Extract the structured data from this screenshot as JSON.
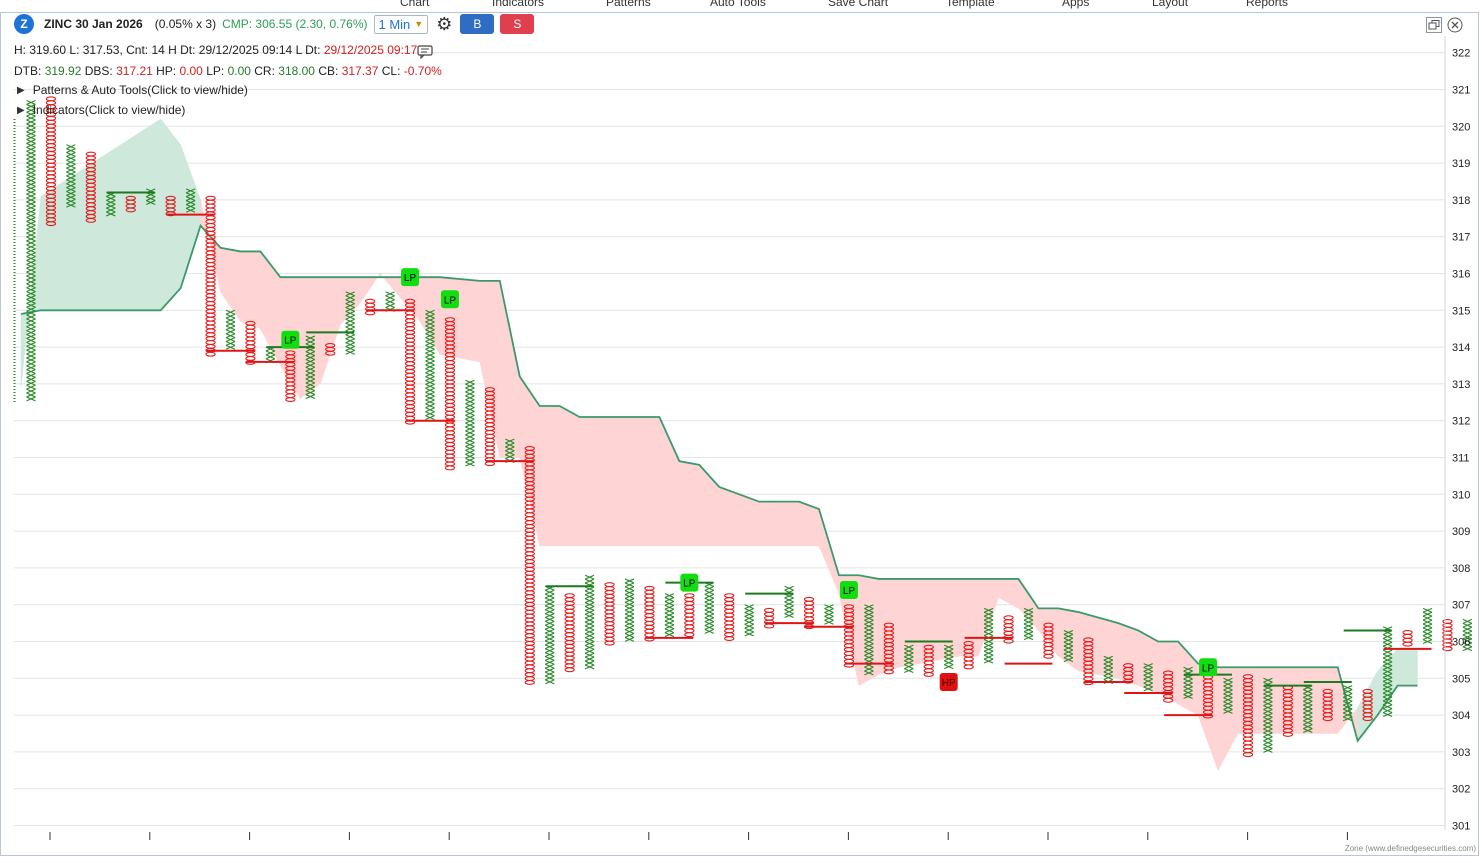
{
  "top_menu": [
    "Chart",
    "Indicators",
    "Patterns",
    "Auto Tools",
    "Save Chart",
    "Template",
    "Apps",
    "Layout",
    "Reports"
  ],
  "header": {
    "logo_letter": "Z",
    "symbol": "ZINC 30 Jan 2026",
    "params": "(0.05% x 3)",
    "cmp": "CMP: 306.55 (2.30, 0.76%)",
    "timeframe": "1 Min",
    "buy_label": "B",
    "sell_label": "S"
  },
  "stats_line1": {
    "h": "H: 319.60",
    "l": "L: 317.53",
    "cnt": ", Cnt: 14",
    "h_dt": "H Dt: 29/12/2025 09:14",
    "l_dt_label": "L Dt:",
    "l_dt_value": "29/12/2025 09:17"
  },
  "stats_line2": {
    "dtb_label": "DTB:",
    "dtb": "319.92",
    "dbs_label": "DBS:",
    "dbs": "317.21",
    "hp_label": "HP:",
    "hp": "0.00",
    "lp_label": "LP:",
    "lp": "0.00",
    "cr_label": "CR:",
    "cr": "318.00",
    "cb_label": "CB:",
    "cb": "317.37",
    "cl_label": "CL:",
    "cl": "-0.70%"
  },
  "toggles": {
    "patterns": "Patterns & Auto Tools(Click to view/hide)",
    "indicators": "Indicators(Click to view/hide)"
  },
  "watermark": "Zone (www.definedgesecurities.com)",
  "colors": {
    "x": "#2a8a2a",
    "o": "#e02020",
    "band_up": "#cfe8dc",
    "band_down": "#ffd4d4",
    "line": "#3a9a6a",
    "lp": "#11dd11",
    "hp": "#e01010"
  },
  "chart_data": {
    "type": "point-and-figure",
    "y_range": [
      301,
      322.5
    ],
    "y_ticks": [
      301,
      302,
      303,
      304,
      305,
      306,
      307,
      308,
      309,
      310,
      311,
      312,
      313,
      314,
      315,
      316,
      317,
      318,
      319,
      320,
      321,
      322
    ],
    "grid": true,
    "columns": [
      {
        "t": "X",
        "lo": 312.5,
        "hi": 320.7
      },
      {
        "t": "O",
        "lo": 317.3,
        "hi": 320.8
      },
      {
        "t": "X",
        "lo": 317.8,
        "hi": 319.5
      },
      {
        "t": "O",
        "lo": 317.4,
        "hi": 319.3
      },
      {
        "t": "X",
        "lo": 317.6,
        "hi": 318.2
      },
      {
        "t": "O",
        "lo": 317.7,
        "hi": 318.1
      },
      {
        "t": "X",
        "lo": 317.9,
        "hi": 318.3
      },
      {
        "t": "O",
        "lo": 317.6,
        "hi": 318.1
      },
      {
        "t": "X",
        "lo": 317.7,
        "hi": 318.3
      },
      {
        "t": "O",
        "lo": 313.8,
        "hi": 318.1
      },
      {
        "t": "X",
        "lo": 313.9,
        "hi": 315.0
      },
      {
        "t": "O",
        "lo": 313.5,
        "hi": 314.7
      },
      {
        "t": "X",
        "lo": 313.6,
        "hi": 314.0
      },
      {
        "t": "O",
        "lo": 312.5,
        "hi": 313.9
      },
      {
        "t": "X",
        "lo": 312.6,
        "hi": 314.3
      },
      {
        "t": "O",
        "lo": 313.8,
        "hi": 314.1
      },
      {
        "t": "X",
        "lo": 313.8,
        "hi": 315.5
      },
      {
        "t": "O",
        "lo": 314.9,
        "hi": 315.3
      },
      {
        "t": "X",
        "lo": 315.0,
        "hi": 315.5
      },
      {
        "t": "O",
        "lo": 311.9,
        "hi": 315.3
      },
      {
        "t": "X",
        "lo": 312.0,
        "hi": 315.0
      },
      {
        "t": "O",
        "lo": 310.7,
        "hi": 314.8
      },
      {
        "t": "X",
        "lo": 310.8,
        "hi": 313.1
      },
      {
        "t": "O",
        "lo": 310.8,
        "hi": 312.9
      },
      {
        "t": "X",
        "lo": 310.9,
        "hi": 311.5
      },
      {
        "t": "O",
        "lo": 304.8,
        "hi": 311.3
      },
      {
        "t": "X",
        "lo": 304.9,
        "hi": 307.5
      },
      {
        "t": "O",
        "lo": 305.2,
        "hi": 307.3
      },
      {
        "t": "X",
        "lo": 305.3,
        "hi": 307.8
      },
      {
        "t": "O",
        "lo": 305.9,
        "hi": 307.6
      },
      {
        "t": "X",
        "lo": 306.0,
        "hi": 307.7
      },
      {
        "t": "O",
        "lo": 306.0,
        "hi": 307.5
      },
      {
        "t": "X",
        "lo": 306.1,
        "hi": 307.3
      },
      {
        "t": "O",
        "lo": 306.1,
        "hi": 307.3
      },
      {
        "t": "X",
        "lo": 306.2,
        "hi": 307.6
      },
      {
        "t": "O",
        "lo": 306.0,
        "hi": 307.3
      },
      {
        "t": "X",
        "lo": 306.1,
        "hi": 307.0
      },
      {
        "t": "O",
        "lo": 306.4,
        "hi": 306.9
      },
      {
        "t": "X",
        "lo": 306.6,
        "hi": 307.5
      },
      {
        "t": "O",
        "lo": 306.4,
        "hi": 307.2
      },
      {
        "t": "X",
        "lo": 306.5,
        "hi": 307.0
      },
      {
        "t": "O",
        "lo": 305.3,
        "hi": 307.0
      },
      {
        "t": "X",
        "lo": 305.1,
        "hi": 307.0
      },
      {
        "t": "O",
        "lo": 305.1,
        "hi": 306.5
      },
      {
        "t": "X",
        "lo": 305.2,
        "hi": 305.9
      },
      {
        "t": "O",
        "lo": 305.1,
        "hi": 305.9
      },
      {
        "t": "X",
        "lo": 305.3,
        "hi": 305.9
      },
      {
        "t": "O",
        "lo": 305.3,
        "hi": 306.0
      },
      {
        "t": "X",
        "lo": 305.4,
        "hi": 306.9
      },
      {
        "t": "O",
        "lo": 306.0,
        "hi": 306.7
      },
      {
        "t": "X",
        "lo": 306.1,
        "hi": 306.9
      },
      {
        "t": "O",
        "lo": 305.5,
        "hi": 306.5
      },
      {
        "t": "X",
        "lo": 305.4,
        "hi": 306.3
      },
      {
        "t": "O",
        "lo": 304.8,
        "hi": 306.1
      },
      {
        "t": "X",
        "lo": 304.9,
        "hi": 305.6
      },
      {
        "t": "O",
        "lo": 304.9,
        "hi": 305.4
      },
      {
        "t": "X",
        "lo": 304.7,
        "hi": 305.4
      },
      {
        "t": "O",
        "lo": 304.4,
        "hi": 305.2
      },
      {
        "t": "X",
        "lo": 304.5,
        "hi": 305.3
      },
      {
        "t": "O",
        "lo": 303.9,
        "hi": 305.3
      },
      {
        "t": "X",
        "lo": 304.0,
        "hi": 305.0
      },
      {
        "t": "O",
        "lo": 302.9,
        "hi": 305.1
      },
      {
        "t": "X",
        "lo": 303.0,
        "hi": 305.0
      },
      {
        "t": "O",
        "lo": 303.4,
        "hi": 304.8
      },
      {
        "t": "X",
        "lo": 303.5,
        "hi": 304.8
      },
      {
        "t": "O",
        "lo": 303.8,
        "hi": 304.7
      },
      {
        "t": "X",
        "lo": 303.8,
        "hi": 304.8
      },
      {
        "t": "O",
        "lo": 303.9,
        "hi": 304.7
      },
      {
        "t": "X",
        "lo": 304.0,
        "hi": 306.4
      },
      {
        "t": "O",
        "lo": 305.9,
        "hi": 306.3
      },
      {
        "t": "X",
        "lo": 305.9,
        "hi": 306.9
      },
      {
        "t": "O",
        "lo": 305.7,
        "hi": 306.6
      },
      {
        "t": "X",
        "lo": 305.8,
        "hi": 306.6
      }
    ],
    "band_upper": [
      [
        0,
        314.9
      ],
      [
        1,
        315
      ],
      [
        7,
        315
      ],
      [
        8,
        315.6
      ],
      [
        9,
        317.3
      ],
      [
        10,
        316.7
      ],
      [
        11,
        316.6
      ],
      [
        12,
        316.6
      ],
      [
        13,
        315.9
      ],
      [
        21,
        315.9
      ],
      [
        23,
        315.8
      ],
      [
        24,
        315.8
      ],
      [
        25,
        313.2
      ],
      [
        26,
        312.4
      ],
      [
        27,
        312.4
      ],
      [
        28,
        312.1
      ],
      [
        32,
        312.1
      ],
      [
        33,
        310.9
      ],
      [
        34,
        310.8
      ],
      [
        35,
        310.2
      ],
      [
        36,
        310.0
      ],
      [
        37,
        309.8
      ],
      [
        39,
        309.8
      ],
      [
        40,
        309.6
      ],
      [
        41,
        307.8
      ],
      [
        42,
        307.8
      ],
      [
        43,
        307.7
      ],
      [
        49,
        307.7
      ],
      [
        50,
        307.7
      ],
      [
        51,
        306.9
      ],
      [
        52,
        306.9
      ],
      [
        53,
        306.8
      ],
      [
        55,
        306.5
      ],
      [
        56,
        306.3
      ],
      [
        57,
        306.0
      ],
      [
        58,
        306.0
      ],
      [
        59,
        305.4
      ],
      [
        60,
        305.3
      ],
      [
        66,
        305.3
      ],
      [
        67,
        303.3
      ],
      [
        68,
        304.0
      ],
      [
        69,
        304.8
      ],
      [
        70,
        304.8
      ]
    ],
    "band_lower": [
      [
        0,
        312.9
      ],
      [
        1,
        318.1
      ],
      [
        7,
        320.2
      ],
      [
        8,
        319.5
      ],
      [
        9,
        318.0
      ],
      [
        10,
        315.5
      ],
      [
        11,
        314.7
      ],
      [
        12,
        314.5
      ],
      [
        13,
        313.5
      ],
      [
        14,
        312.6
      ],
      [
        15,
        313
      ],
      [
        16,
        314.6
      ],
      [
        17,
        315.2
      ],
      [
        18,
        316.0
      ],
      [
        20,
        314.7
      ],
      [
        21,
        313.8
      ],
      [
        22,
        313.7
      ],
      [
        23,
        313.6
      ],
      [
        24,
        311.0
      ],
      [
        25,
        311.0
      ],
      [
        26,
        308.6
      ],
      [
        40,
        308.6
      ],
      [
        41,
        307.3
      ],
      [
        42,
        304.8
      ],
      [
        43,
        305.1
      ],
      [
        44,
        305.3
      ],
      [
        45,
        305.4
      ],
      [
        47,
        305.6
      ],
      [
        48,
        305.6
      ],
      [
        49,
        307.2
      ],
      [
        50,
        306.9
      ],
      [
        51,
        306.3
      ],
      [
        52,
        305.6
      ],
      [
        53,
        305.2
      ],
      [
        54,
        305.1
      ],
      [
        55,
        305.0
      ],
      [
        56,
        304.8
      ],
      [
        57,
        304.6
      ],
      [
        58,
        304.3
      ],
      [
        59,
        304.0
      ],
      [
        60,
        302.5
      ],
      [
        61,
        303.5
      ],
      [
        66,
        303.5
      ],
      [
        67,
        304.2
      ],
      [
        68,
        305.2
      ],
      [
        69,
        305.8
      ],
      [
        70,
        305.8
      ]
    ],
    "signals": [
      {
        "label": "LP",
        "col": 19,
        "y": 315.9,
        "type": "low-pole"
      },
      {
        "label": "LP",
        "col": 21,
        "y": 315.3,
        "type": "low-pole"
      },
      {
        "label": "LP",
        "col": 13,
        "y": 314.2,
        "type": "low-pole"
      },
      {
        "label": "LP",
        "col": 33,
        "y": 307.6,
        "type": "low-pole"
      },
      {
        "label": "LP",
        "col": 41,
        "y": 307.4,
        "type": "low-pole"
      },
      {
        "label": "HP",
        "col": 46,
        "y": 304.9,
        "type": "high-pole"
      },
      {
        "label": "LP",
        "col": 59,
        "y": 305.3,
        "type": "low-pole"
      }
    ],
    "levels": [
      {
        "c1": 4,
        "c2": 6,
        "y": 318.2,
        "color": "green"
      },
      {
        "c1": 7,
        "c2": 9,
        "y": 317.6,
        "color": "red"
      },
      {
        "c1": 9,
        "c2": 11,
        "y": 313.9,
        "color": "red"
      },
      {
        "c1": 11,
        "c2": 13,
        "y": 313.6,
        "color": "red"
      },
      {
        "c1": 12,
        "c2": 14,
        "y": 314.0,
        "color": "green"
      },
      {
        "c1": 14,
        "c2": 16,
        "y": 314.4,
        "color": "green"
      },
      {
        "c1": 17,
        "c2": 19,
        "y": 315.0,
        "color": "red"
      },
      {
        "c1": 19,
        "c2": 21,
        "y": 312.0,
        "color": "red"
      },
      {
        "c1": 23,
        "c2": 25,
        "y": 310.9,
        "color": "red"
      },
      {
        "c1": 26,
        "c2": 28,
        "y": 307.5,
        "color": "green"
      },
      {
        "c1": 31,
        "c2": 33,
        "y": 306.1,
        "color": "red"
      },
      {
        "c1": 32,
        "c2": 34,
        "y": 307.6,
        "color": "green"
      },
      {
        "c1": 36,
        "c2": 38,
        "y": 307.3,
        "color": "green"
      },
      {
        "c1": 37,
        "c2": 39,
        "y": 306.5,
        "color": "red"
      },
      {
        "c1": 39,
        "c2": 41,
        "y": 306.4,
        "color": "red"
      },
      {
        "c1": 41,
        "c2": 43,
        "y": 305.4,
        "color": "red"
      },
      {
        "c1": 44,
        "c2": 46,
        "y": 306.0,
        "color": "green"
      },
      {
        "c1": 47,
        "c2": 49,
        "y": 306.1,
        "color": "red"
      },
      {
        "c1": 49,
        "c2": 51,
        "y": 305.4,
        "color": "red"
      },
      {
        "c1": 53,
        "c2": 55,
        "y": 304.9,
        "color": "red"
      },
      {
        "c1": 55,
        "c2": 57,
        "y": 304.6,
        "color": "red"
      },
      {
        "c1": 57,
        "c2": 59,
        "y": 304.0,
        "color": "red"
      },
      {
        "c1": 58,
        "c2": 60,
        "y": 305.1,
        "color": "green"
      },
      {
        "c1": 62,
        "c2": 64,
        "y": 304.8,
        "color": "green"
      },
      {
        "c1": 64,
        "c2": 66,
        "y": 304.9,
        "color": "green"
      },
      {
        "c1": 66,
        "c2": 68,
        "y": 306.3,
        "color": "green"
      },
      {
        "c1": 68,
        "c2": 70,
        "y": 305.8,
        "color": "red"
      }
    ]
  }
}
